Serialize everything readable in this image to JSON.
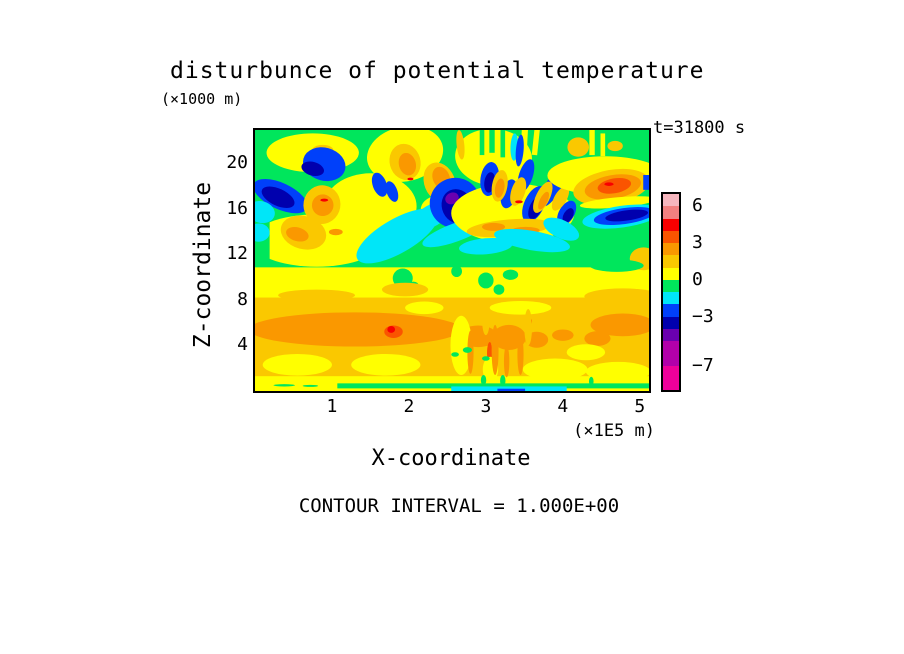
{
  "title": "disturbunce of potential temperature",
  "annotations": {
    "z_units": "(×1000 m)",
    "time": "t=31800 s",
    "x_units": "(×1E5 m)",
    "contour_note": "CONTOUR INTERVAL = 1.000E+00"
  },
  "axes": {
    "y_label": "Z-coordinate",
    "x_label": "X-coordinate",
    "y_ticks": [
      20,
      16,
      12,
      8,
      4
    ],
    "x_ticks": [
      1,
      2,
      3,
      4,
      5
    ]
  },
  "chart_data": {
    "type": "heatmap",
    "title": "disturbunce of potential temperature",
    "xlabel": "X-coordinate",
    "ylabel": "Z-coordinate",
    "x_units_factor": "1E5 m",
    "z_units_factor": "1000 m",
    "x_range": [
      0,
      5.12
    ],
    "z_range": [
      0,
      22.9
    ],
    "time_seconds": 31800,
    "contour_interval": 1.0,
    "palette": {
      "palepink": "#F6B6BE",
      "salmon": "#F28080",
      "red": "#F80000",
      "orangered": "#FA5400",
      "orange": "#FA9800",
      "amber": "#FAC800",
      "yellow": "#FFFF00",
      "green": "#00E65C",
      "cyan": "#00E6F8",
      "blue": "#0040FA",
      "navy": "#0000AE",
      "violet": "#6A00B0",
      "magpurple": "#B200AA",
      "magenta": "#EE009A"
    },
    "colorbar": {
      "tick_values": [
        "6",
        "3",
        "0",
        "−3",
        "−7"
      ],
      "tick_offsets_units": [
        1,
        4,
        7,
        10,
        14
      ],
      "total_units": 16,
      "segments": [
        [
          "palepink",
          1
        ],
        [
          "salmon",
          1
        ],
        [
          "red",
          1
        ],
        [
          "orangered",
          1
        ],
        [
          "orange",
          1
        ],
        [
          "amber",
          1
        ],
        [
          "yellow",
          1
        ],
        [
          "green",
          1
        ],
        [
          "cyan",
          1
        ],
        [
          "blue",
          1
        ],
        [
          "navy",
          1
        ],
        [
          "violet",
          1
        ],
        [
          "magpurple",
          2
        ],
        [
          "magenta",
          2
        ]
      ]
    },
    "features": [
      [
        "r",
        "yellow",
        2.56,
        11.45,
        2.56,
        11.45,
        0
      ],
      [
        "r",
        "green",
        2.56,
        17.0,
        2.56,
        6.15,
        0
      ],
      [
        "e",
        "yellow",
        0.8,
        13.2,
        0.85,
        2.3,
        0
      ],
      [
        "r",
        "green",
        0.09,
        17.3,
        0.1,
        5.8,
        0
      ],
      [
        "e",
        "cyan",
        0.05,
        13.9,
        0.14,
        0.8,
        0
      ],
      [
        "e",
        "yellow",
        0.75,
        20.9,
        0.6,
        1.7,
        0
      ],
      [
        "e",
        "amber",
        0.88,
        21.1,
        0.14,
        0.5,
        0
      ],
      [
        "e",
        "yellow",
        1.5,
        16.2,
        0.6,
        2.9,
        0
      ],
      [
        "e",
        "blue",
        0.9,
        19.9,
        0.28,
        1.45,
        15
      ],
      [
        "e",
        "navy",
        0.75,
        19.5,
        0.15,
        0.6,
        15
      ],
      [
        "e",
        "blue",
        0.33,
        17.1,
        0.38,
        1.15,
        25
      ],
      [
        "e",
        "navy",
        0.3,
        17.0,
        0.23,
        0.75,
        25
      ],
      [
        "e",
        "cyan",
        0.08,
        15.7,
        0.18,
        0.95,
        15
      ],
      [
        "e",
        "amber",
        0.87,
        16.35,
        0.24,
        1.7,
        10
      ],
      [
        "e",
        "orange",
        0.88,
        16.3,
        0.14,
        0.95,
        10
      ],
      [
        "e",
        "red",
        0.9,
        16.75,
        0.05,
        0.13,
        0
      ],
      [
        "e",
        "amber",
        0.63,
        13.9,
        0.3,
        1.45,
        15
      ],
      [
        "e",
        "orange",
        0.55,
        13.75,
        0.15,
        0.6,
        15
      ],
      [
        "e",
        "orange",
        1.05,
        13.95,
        0.09,
        0.28,
        0
      ],
      [
        "e",
        "yellow",
        1.95,
        20.8,
        0.5,
        2.4,
        -12
      ],
      [
        "e",
        "amber",
        1.95,
        20.1,
        0.2,
        1.6,
        -15
      ],
      [
        "e",
        "orange",
        1.98,
        19.9,
        0.11,
        1.0,
        -15
      ],
      [
        "e",
        "red",
        2.02,
        18.6,
        0.04,
        0.12,
        0
      ],
      [
        "e",
        "blue",
        1.62,
        18.1,
        0.09,
        1.1,
        -20
      ],
      [
        "e",
        "blue",
        1.78,
        17.5,
        0.07,
        0.95,
        -20
      ],
      [
        "e",
        "yellow",
        2.35,
        16.0,
        0.2,
        1.1,
        -15
      ],
      [
        "e",
        "cyan",
        1.85,
        13.6,
        0.6,
        1.5,
        -30
      ],
      [
        "e",
        "cyan",
        2.3,
        15.4,
        0.28,
        0.95,
        -30
      ],
      [
        "e",
        "amber",
        2.4,
        18.3,
        0.2,
        1.8,
        -22
      ],
      [
        "e",
        "orange",
        2.42,
        18.7,
        0.11,
        1.0,
        -22
      ],
      [
        "e",
        "blue",
        2.6,
        16.5,
        0.33,
        2.2,
        -25
      ],
      [
        "e",
        "navy",
        2.63,
        16.2,
        0.2,
        1.55,
        -25
      ],
      [
        "e",
        "violet",
        2.56,
        16.9,
        0.09,
        0.5,
        -25
      ],
      [
        "e",
        "violet",
        2.72,
        15.3,
        0.07,
        0.35,
        -25
      ],
      [
        "e",
        "cyan",
        2.6,
        13.9,
        0.45,
        0.8,
        -20
      ],
      [
        "e",
        "yellow",
        3.35,
        15.6,
        0.8,
        2.6,
        0
      ],
      [
        "e",
        "yellow",
        3.1,
        20.5,
        0.5,
        2.5,
        5
      ],
      [
        "r",
        "green",
        3.08,
        22.0,
        0.035,
        1.1,
        0
      ],
      [
        "r",
        "green",
        3.22,
        21.8,
        0.03,
        1.3,
        0
      ],
      [
        "r",
        "green",
        2.95,
        21.9,
        0.03,
        1.2,
        0
      ],
      [
        "r",
        "yellow",
        3.5,
        22.0,
        0.04,
        1.1,
        3
      ],
      [
        "r",
        "yellow",
        3.65,
        21.9,
        0.035,
        1.2,
        6
      ],
      [
        "e",
        "amber",
        2.67,
        21.6,
        0.05,
        1.3,
        -6
      ],
      [
        "e",
        "cyan",
        3.37,
        21.4,
        0.05,
        1.2,
        2
      ],
      [
        "e",
        "blue",
        3.44,
        21.1,
        0.05,
        1.4,
        5
      ],
      [
        "e",
        "blue",
        3.05,
        18.6,
        0.12,
        1.5,
        8
      ],
      [
        "e",
        "navy",
        3.05,
        18.3,
        0.07,
        0.9,
        8
      ],
      [
        "e",
        "blue",
        3.3,
        17.3,
        0.1,
        1.3,
        15
      ],
      [
        "e",
        "blue",
        3.52,
        18.9,
        0.09,
        1.5,
        18
      ],
      [
        "e",
        "blue",
        3.63,
        16.4,
        0.13,
        1.7,
        25
      ],
      [
        "e",
        "navy",
        3.65,
        16.1,
        0.08,
        1.1,
        25
      ],
      [
        "e",
        "blue",
        3.87,
        17.9,
        0.1,
        1.9,
        28
      ],
      [
        "e",
        "blue",
        4.05,
        15.6,
        0.1,
        1.2,
        30
      ],
      [
        "e",
        "navy",
        4.07,
        15.4,
        0.06,
        0.7,
        30
      ],
      [
        "e",
        "amber",
        3.18,
        18.0,
        0.1,
        1.4,
        10
      ],
      [
        "e",
        "orange",
        3.18,
        17.8,
        0.06,
        0.85,
        10
      ],
      [
        "e",
        "amber",
        3.42,
        17.5,
        0.09,
        1.3,
        18
      ],
      [
        "e",
        "red",
        3.43,
        16.6,
        0.05,
        0.13,
        0
      ],
      [
        "e",
        "amber",
        3.74,
        17.0,
        0.09,
        1.5,
        26
      ],
      [
        "e",
        "orange",
        3.75,
        16.7,
        0.05,
        0.85,
        26
      ],
      [
        "e",
        "amber",
        3.97,
        16.9,
        0.08,
        1.2,
        30
      ],
      [
        "e",
        "amber",
        3.3,
        14.3,
        0.55,
        0.75,
        -5
      ],
      [
        "e",
        "orange",
        3.1,
        14.4,
        0.15,
        0.35,
        0
      ],
      [
        "e",
        "orange",
        3.52,
        14.1,
        0.18,
        0.3,
        0
      ],
      [
        "e",
        "cyan",
        3.6,
        13.2,
        0.5,
        0.85,
        10
      ],
      [
        "e",
        "cyan",
        3.0,
        12.7,
        0.35,
        0.7,
        -5
      ],
      [
        "e",
        "cyan",
        3.98,
        14.2,
        0.25,
        0.8,
        25
      ],
      [
        "e",
        "yellow",
        4.55,
        18.9,
        0.75,
        1.7,
        0
      ],
      [
        "r",
        "yellow",
        4.38,
        21.9,
        0.035,
        1.2,
        0
      ],
      [
        "r",
        "yellow",
        4.52,
        21.6,
        0.03,
        1.0,
        0
      ],
      [
        "e",
        "amber",
        4.2,
        21.4,
        0.14,
        0.85,
        0
      ],
      [
        "e",
        "amber",
        4.68,
        21.5,
        0.1,
        0.45,
        0
      ],
      [
        "e",
        "amber",
        4.63,
        17.9,
        0.5,
        1.5,
        -10
      ],
      [
        "e",
        "orange",
        4.65,
        17.9,
        0.37,
        1.05,
        -10
      ],
      [
        "e",
        "orangered",
        4.67,
        18.0,
        0.22,
        0.65,
        -10
      ],
      [
        "e",
        "red",
        4.6,
        18.15,
        0.06,
        0.16,
        0
      ],
      [
        "e",
        "yellow",
        4.72,
        16.55,
        0.5,
        0.45,
        -5
      ],
      [
        "e",
        "cyan",
        4.77,
        15.3,
        0.52,
        0.95,
        -8
      ],
      [
        "e",
        "blue",
        4.8,
        15.35,
        0.4,
        0.7,
        -8
      ],
      [
        "e",
        "navy",
        4.83,
        15.4,
        0.28,
        0.45,
        -8
      ],
      [
        "r",
        "blue",
        5.09,
        18.3,
        0.045,
        0.65,
        0
      ],
      [
        "e",
        "amber",
        5.05,
        11.6,
        0.18,
        1.0,
        0
      ],
      [
        "e",
        "green",
        4.7,
        11.0,
        0.35,
        0.55,
        0
      ],
      [
        "e",
        "green",
        1.92,
        9.9,
        0.13,
        0.85,
        0
      ],
      [
        "e",
        "green",
        2.06,
        9.2,
        0.07,
        0.4,
        0
      ],
      [
        "e",
        "green",
        3.0,
        9.7,
        0.1,
        0.7,
        0
      ],
      [
        "e",
        "green",
        3.17,
        8.9,
        0.07,
        0.45,
        0
      ],
      [
        "e",
        "green",
        3.32,
        10.2,
        0.1,
        0.45,
        0
      ],
      [
        "e",
        "green",
        2.62,
        10.5,
        0.07,
        0.5,
        0
      ],
      [
        "r",
        "amber",
        2.56,
        4.75,
        2.56,
        3.45,
        0
      ],
      [
        "e",
        "amber",
        0.8,
        8.4,
        0.5,
        0.5,
        0
      ],
      [
        "e",
        "amber",
        1.95,
        8.9,
        0.3,
        0.6,
        0
      ],
      [
        "e",
        "amber",
        4.78,
        8.3,
        0.5,
        0.7,
        0
      ],
      [
        "e",
        "orange",
        1.3,
        5.4,
        1.38,
        1.5,
        0
      ],
      [
        "e",
        "orange",
        2.9,
        4.8,
        0.25,
        0.95,
        0
      ],
      [
        "e",
        "orange",
        3.3,
        4.7,
        0.22,
        1.1,
        0
      ],
      [
        "e",
        "orange",
        3.66,
        4.5,
        0.15,
        0.7,
        0
      ],
      [
        "e",
        "orange",
        4.0,
        4.9,
        0.14,
        0.5,
        0
      ],
      [
        "e",
        "orange",
        4.78,
        5.8,
        0.42,
        1.0,
        0
      ],
      [
        "e",
        "orange",
        4.45,
        4.6,
        0.17,
        0.65,
        0
      ],
      [
        "e",
        "orangered",
        1.8,
        5.2,
        0.12,
        0.55,
        0
      ],
      [
        "e",
        "red",
        1.77,
        5.4,
        0.05,
        0.3,
        0
      ],
      [
        "e",
        "red",
        3.57,
        6.1,
        0.03,
        0.35,
        0
      ],
      [
        "e",
        "orangered",
        3.05,
        3.3,
        0.035,
        1.0,
        0
      ],
      [
        "e",
        "yellow",
        0.55,
        2.3,
        0.45,
        0.95,
        0
      ],
      [
        "e",
        "yellow",
        1.7,
        2.3,
        0.45,
        0.95,
        0
      ],
      [
        "e",
        "yellow",
        2.68,
        4.0,
        0.14,
        2.6,
        0
      ],
      [
        "e",
        "yellow",
        3.06,
        1.9,
        0.1,
        1.1,
        0
      ],
      [
        "e",
        "yellow",
        3.9,
        1.9,
        0.42,
        0.95,
        0
      ],
      [
        "e",
        "yellow",
        4.72,
        1.7,
        0.42,
        0.85,
        0
      ],
      [
        "e",
        "yellow",
        2.2,
        7.3,
        0.25,
        0.55,
        0
      ],
      [
        "e",
        "yellow",
        3.45,
        7.3,
        0.4,
        0.6,
        0
      ],
      [
        "e",
        "yellow",
        4.3,
        3.4,
        0.25,
        0.7,
        0
      ],
      [
        "e",
        "orange",
        2.8,
        3.4,
        0.04,
        1.9,
        0
      ],
      [
        "e",
        "orange",
        3.12,
        3.6,
        0.045,
        2.2,
        0
      ],
      [
        "e",
        "orange",
        3.27,
        2.6,
        0.035,
        1.4,
        0
      ],
      [
        "e",
        "orange",
        3.45,
        3.2,
        0.04,
        1.8,
        0
      ],
      [
        "e",
        "amber",
        3.0,
        6.3,
        0.05,
        1.4,
        0
      ],
      [
        "e",
        "amber",
        3.55,
        5.6,
        0.05,
        1.6,
        0
      ],
      [
        "e",
        "green",
        2.76,
        3.6,
        0.06,
        0.25,
        0
      ],
      [
        "e",
        "green",
        3.0,
        2.85,
        0.05,
        0.2,
        0
      ],
      [
        "e",
        "green",
        2.6,
        3.2,
        0.05,
        0.2,
        0
      ],
      [
        "r",
        "green",
        3.1,
        0.45,
        2.03,
        0.22,
        0
      ],
      [
        "r",
        "cyan",
        3.3,
        0.2,
        0.75,
        0.2,
        0
      ],
      [
        "r",
        "blue",
        3.33,
        0.1,
        0.18,
        0.1,
        0
      ],
      [
        "e",
        "green",
        0.38,
        0.5,
        0.14,
        0.1,
        0
      ],
      [
        "e",
        "green",
        0.72,
        0.45,
        0.1,
        0.09,
        0
      ],
      [
        "e",
        "green",
        2.97,
        0.95,
        0.035,
        0.45,
        0
      ],
      [
        "e",
        "green",
        3.22,
        0.9,
        0.035,
        0.5,
        0
      ],
      [
        "e",
        "green",
        4.37,
        0.85,
        0.03,
        0.4,
        0
      ]
    ]
  }
}
